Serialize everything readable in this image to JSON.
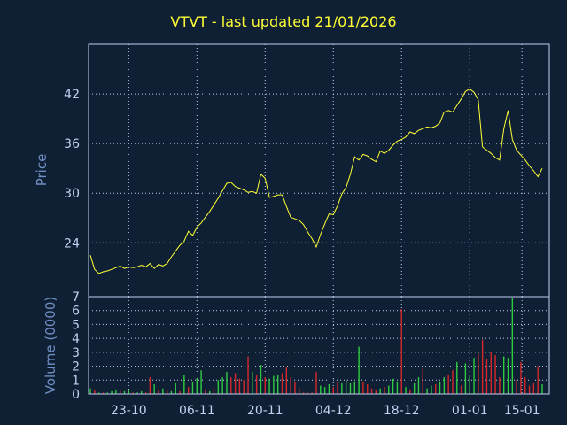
{
  "chart_data": [
    {
      "type": "line",
      "title": "VTVT - last updated 21/01/2026",
      "ylabel": "Price",
      "ylim": [
        17.5,
        48
      ],
      "yticks": [
        24,
        30,
        36,
        42
      ],
      "grid": true,
      "line_color": "#ffff33",
      "values": [
        22.5,
        20.8,
        20.3,
        20.5,
        20.6,
        20.8,
        21.0,
        21.2,
        20.9,
        21.1,
        21.0,
        21.1,
        21.3,
        21.1,
        21.5,
        20.9,
        21.4,
        21.2,
        21.5,
        22.3,
        23.0,
        23.7,
        24.2,
        25.4,
        24.9,
        25.9,
        26.4,
        27.1,
        27.8,
        28.6,
        29.4,
        30.3,
        31.2,
        31.3,
        30.8,
        30.6,
        30.4,
        30.1,
        30.2,
        30.0,
        32.3,
        31.8,
        29.5,
        29.6,
        29.8,
        29.8,
        28.4,
        27.1,
        26.9,
        26.7,
        26.2,
        25.3,
        24.5,
        23.5,
        25.0,
        26.3,
        27.5,
        27.4,
        28.5,
        29.9,
        30.7,
        32.3,
        34.4,
        34.0,
        34.7,
        34.5,
        34.1,
        33.8,
        35.1,
        34.8,
        35.2,
        35.8,
        36.3,
        36.5,
        36.8,
        37.4,
        37.2,
        37.6,
        37.8,
        38.0,
        37.9,
        38.1,
        38.5,
        39.8,
        40.0,
        39.8,
        40.6,
        41.4,
        42.3,
        42.6,
        42.2,
        41.3,
        35.6,
        35.2,
        34.8,
        34.3,
        34.0,
        37.8,
        40.0,
        36.5,
        35.2,
        34.6,
        34.0,
        33.3,
        32.7,
        32.0,
        33.0
      ]
    },
    {
      "type": "bar",
      "ylabel": "Volume (0000)",
      "ylim": [
        0,
        7
      ],
      "yticks": [
        0,
        1,
        2,
        3,
        4,
        5,
        6,
        7
      ],
      "grid": true,
      "colors": {
        "up": "#2ecc40",
        "down": "#d62728"
      },
      "xticks": [
        "23-10",
        "06-11",
        "20-11",
        "04-12",
        "18-12",
        "01-01",
        "15-01"
      ],
      "values": [
        0.4,
        0.3,
        0.1,
        0.1,
        0.1,
        0.2,
        0.3,
        0.3,
        0.2,
        0.3,
        0.1,
        0.1,
        0.2,
        0.1,
        1.2,
        0.7,
        0.3,
        0.4,
        0.3,
        0.2,
        0.8,
        0.2,
        1.4,
        0.5,
        0.9,
        1.1,
        1.7,
        0.3,
        0.2,
        0.4,
        1.0,
        1.2,
        1.6,
        1.2,
        1.5,
        1.1,
        1.0,
        2.7,
        1.6,
        1.4,
        2.1,
        1.2,
        1.1,
        1.3,
        1.4,
        1.5,
        1.9,
        1.2,
        0.9,
        0.4,
        0.1,
        0.1,
        0.1,
        1.6,
        0.6,
        0.5,
        0.7,
        0.5,
        0.9,
        0.8,
        1.0,
        0.8,
        0.9,
        3.4,
        0.9,
        0.7,
        0.4,
        0.3,
        0.4,
        0.5,
        0.6,
        1.1,
        0.9,
        6.1,
        0.5,
        0.3,
        0.8,
        1.2,
        1.8,
        0.4,
        0.6,
        0.7,
        0.9,
        1.2,
        1.4,
        1.7,
        2.3,
        0.6,
        2.2,
        1.4,
        2.6,
        2.9,
        3.9,
        2.5,
        3.0,
        2.8,
        1.2,
        2.7,
        2.6,
        6.9,
        1.0,
        2.3,
        1.2,
        0.6,
        0.8,
        2.0,
        0.7
      ],
      "directions": [
        "u",
        "d",
        "u",
        "d",
        "u",
        "u",
        "u",
        "d",
        "u",
        "u",
        "d",
        "u",
        "u",
        "d",
        "d",
        "u",
        "d",
        "u",
        "d",
        "u",
        "u",
        "d",
        "u",
        "d",
        "u",
        "u",
        "u",
        "d",
        "u",
        "d",
        "u",
        "u",
        "u",
        "d",
        "d",
        "d",
        "d",
        "d",
        "u",
        "d",
        "u",
        "d",
        "u",
        "u",
        "u",
        "d",
        "d",
        "d",
        "d",
        "d",
        "d",
        "d",
        "d",
        "d",
        "u",
        "u",
        "u",
        "d",
        "d",
        "u",
        "u",
        "u",
        "u",
        "u",
        "d",
        "d",
        "d",
        "d",
        "u",
        "d",
        "u",
        "u",
        "u",
        "d",
        "u",
        "d",
        "u",
        "u",
        "d",
        "u",
        "u",
        "d",
        "u",
        "u",
        "d",
        "d",
        "u",
        "d",
        "u",
        "u",
        "u",
        "d",
        "d",
        "d",
        "d",
        "d",
        "d",
        "u",
        "u",
        "u",
        "d",
        "d",
        "d",
        "d",
        "d",
        "d",
        "u"
      ]
    }
  ]
}
